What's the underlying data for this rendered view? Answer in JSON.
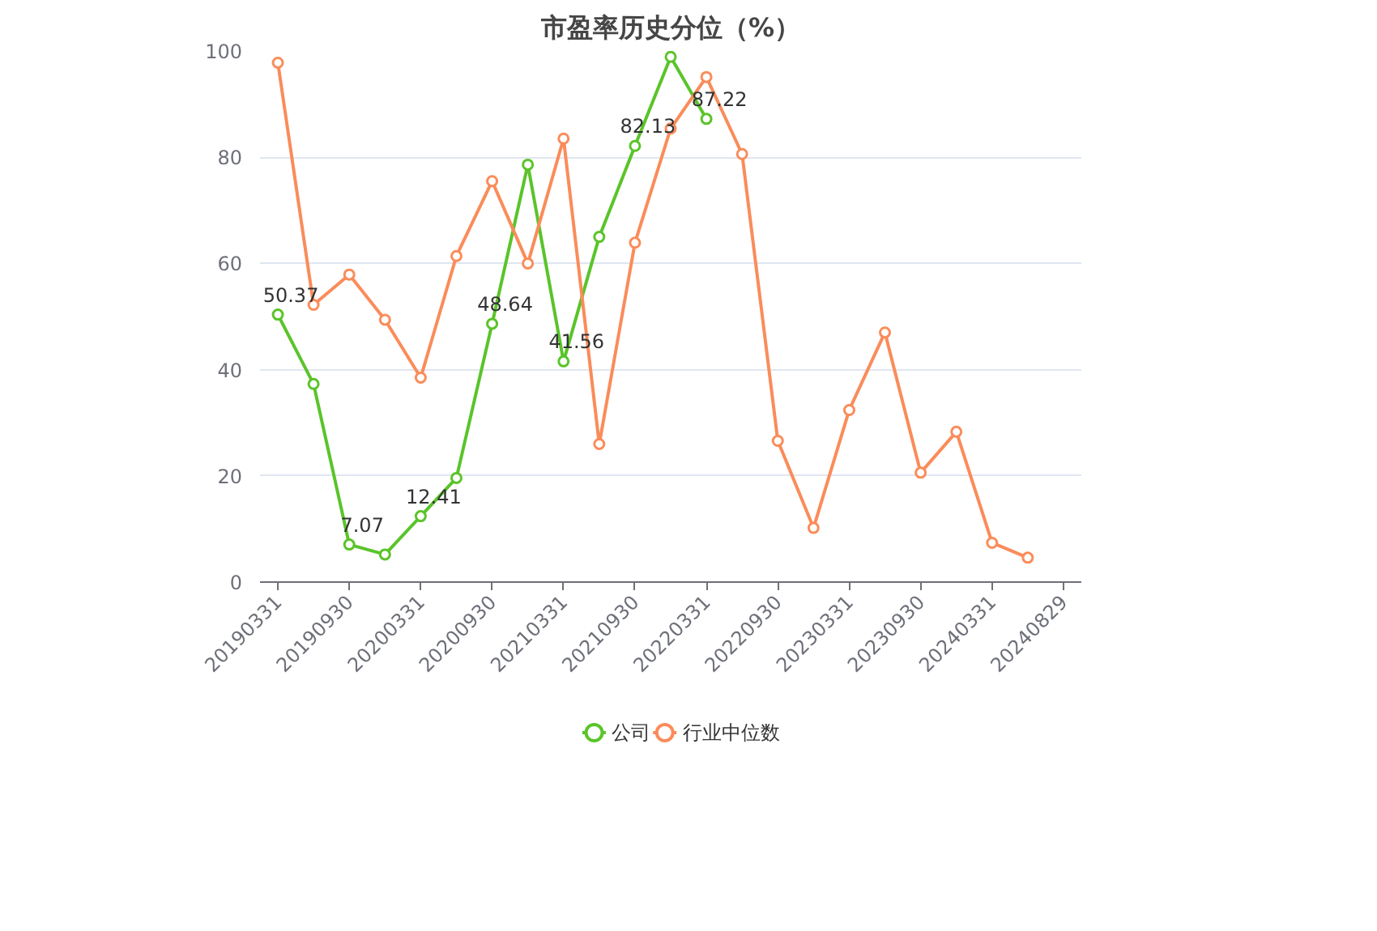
{
  "chart_data": {
    "type": "line",
    "title": "市盈率历史分位（%）",
    "categories": [
      "20190331",
      null,
      "20190930",
      null,
      "20200331",
      null,
      "20200930",
      null,
      "20210331",
      null,
      "20210930",
      null,
      "20220331",
      null,
      "20220930",
      null,
      "20230331",
      null,
      "20230930",
      null,
      "20240331",
      null,
      "20240829"
    ],
    "series": [
      {
        "name": "公司",
        "color": "#5ac42a",
        "values": [
          50.37,
          37.3,
          7.07,
          5.2,
          12.41,
          19.6,
          48.64,
          78.6,
          41.56,
          65.0,
          82.13,
          98.9,
          87.22,
          null,
          null,
          null,
          null,
          null,
          null,
          null,
          null,
          null,
          null
        ],
        "value_labels": [
          "50.37",
          null,
          "7.07",
          null,
          "12.41",
          null,
          "48.64",
          null,
          "41.56",
          null,
          "82.13",
          null,
          "87.22",
          null,
          null,
          null,
          null,
          null,
          null,
          null,
          null,
          null,
          null
        ]
      },
      {
        "name": "行业中位数",
        "color": "#fa8c5a",
        "values": [
          97.8,
          52.2,
          57.9,
          49.4,
          38.5,
          61.4,
          75.5,
          60.0,
          83.5,
          26.0,
          63.9,
          85.4,
          95.1,
          80.6,
          26.6,
          10.2,
          32.4,
          47.0,
          20.6,
          28.3,
          7.4,
          4.6,
          null
        ]
      }
    ],
    "ylim": [
      0,
      100
    ],
    "yticks": [
      0,
      20,
      40,
      60,
      80,
      100
    ],
    "grid": "y",
    "legend": "bottom",
    "marker": "circle",
    "line_style": "solid"
  }
}
